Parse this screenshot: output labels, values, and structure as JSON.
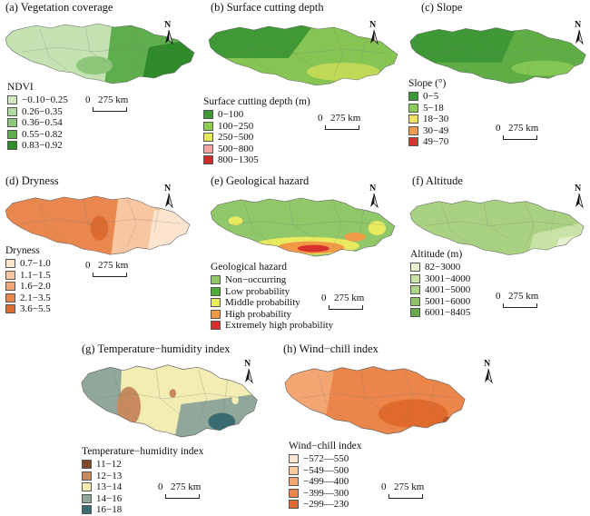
{
  "panels": [
    {
      "title": "(a) Vegetation coverage",
      "legend_title": "NDVI",
      "classes": [
        {
          "label": "−0.10−0.25",
          "color": "#cfe8c0"
        },
        {
          "label": "0.26−0.35",
          "color": "#b2d99e"
        },
        {
          "label": "0.36−0.54",
          "color": "#8cc77a"
        },
        {
          "label": "0.55−0.82",
          "color": "#5fae4e"
        },
        {
          "label": "0.83−0.92",
          "color": "#2f8a2a"
        }
      ],
      "fill": "#c4e2b2",
      "accent": "#5aac48",
      "north": "N",
      "scale_zero": "0",
      "scale_label": "275 km"
    },
    {
      "title": "(b) Surface cutting depth",
      "legend_title": "Surface cutting depth (m)",
      "classes": [
        {
          "label": "0−100",
          "color": "#3f9a35"
        },
        {
          "label": "100−250",
          "color": "#8fcf4f"
        },
        {
          "label": "250−500",
          "color": "#e6e65a"
        },
        {
          "label": "500−800",
          "color": "#f4a6a6"
        },
        {
          "label": "800−1305",
          "color": "#cc2b2b"
        }
      ],
      "fill": "#86c553",
      "accent": "#4fa338",
      "north": "N",
      "scale_zero": "0",
      "scale_label": "275 km"
    },
    {
      "title": "(c) Slope",
      "legend_title": "Slope (°)",
      "classes": [
        {
          "label": "0−5",
          "color": "#3e9836"
        },
        {
          "label": "5−18",
          "color": "#8ccc58"
        },
        {
          "label": "18−30",
          "color": "#eee060"
        },
        {
          "label": "30−49",
          "color": "#ef9a4e"
        },
        {
          "label": "49−70",
          "color": "#d8332e"
        }
      ],
      "fill": "#5fae45",
      "accent": "#3e9836",
      "north": "N",
      "scale_zero": "0",
      "scale_label": "275 km"
    },
    {
      "title": "(d) Dryness",
      "legend_title": "Dryness",
      "classes": [
        {
          "label": "0.7−1.0",
          "color": "#fde4cf"
        },
        {
          "label": "1.1−1.5",
          "color": "#f8c7a1"
        },
        {
          "label": "1.6−2.0",
          "color": "#f2a677"
        },
        {
          "label": "2.1−3.5",
          "color": "#e9874f"
        },
        {
          "label": "3.6−5.5",
          "color": "#dd6a2e"
        }
      ],
      "fill": "#e9874f",
      "accent": "#f8c7a1",
      "north": "N",
      "scale_zero": "0",
      "scale_label": "275 km"
    },
    {
      "title": "(e) Geological hazard",
      "legend_title": "Geological hazard",
      "classes": [
        {
          "label": "Non−occurring",
          "color": "#8fc769"
        },
        {
          "label": "Low probability",
          "color": "#4fa83a"
        },
        {
          "label": "Middle probability",
          "color": "#eaea5e"
        },
        {
          "label": "High probability",
          "color": "#f09a48"
        },
        {
          "label": "Extremely high probability",
          "color": "#d8302c"
        }
      ],
      "fill": "#8fc769",
      "accent": "#eaea5e",
      "north": "N",
      "scale_zero": "0",
      "scale_label": "275 km"
    },
    {
      "title": "(f) Altitude",
      "legend_title": "Altitude (m)",
      "classes": [
        {
          "label": "82−3000",
          "color": "#e5f2cf"
        },
        {
          "label": "3001−4000",
          "color": "#c9e3a6"
        },
        {
          "label": "4001−5000",
          "color": "#add487"
        },
        {
          "label": "5001−6000",
          "color": "#8fc269"
        },
        {
          "label": "6001−8405",
          "color": "#6aa948"
        }
      ],
      "fill": "#a9d182",
      "accent": "#e1efc9",
      "north": "N",
      "scale_zero": "0",
      "scale_label": "275 km"
    },
    {
      "title": "(g) Temperature−humidity index",
      "legend_title": "Temperature−humidity index",
      "classes": [
        {
          "label": "11−12",
          "color": "#7a4a2a"
        },
        {
          "label": "12−13",
          "color": "#c78a5c"
        },
        {
          "label": "13−14",
          "color": "#f3ecb3"
        },
        {
          "label": "14−16",
          "color": "#8fa89a"
        },
        {
          "label": "16−18",
          "color": "#3a6b73"
        }
      ],
      "fill": "#f3ecb3",
      "accent": "#8fa89a",
      "north": "N",
      "scale_zero": "0",
      "scale_label": "275 km"
    },
    {
      "title": "(h) Wind−chill index",
      "legend_title": "Wind−chill index",
      "classes": [
        {
          "label": "−572—550",
          "color": "#fde6cf"
        },
        {
          "label": "−549—500",
          "color": "#f9c9a0"
        },
        {
          "label": "−499—400",
          "color": "#f4a672"
        },
        {
          "label": "−399—300",
          "color": "#ec8549"
        },
        {
          "label": "−299—230",
          "color": "#e06a2b"
        }
      ],
      "fill": "#ec8549",
      "accent": "#e06a2b",
      "north": "N",
      "scale_zero": "0",
      "scale_label": "275 km"
    }
  ]
}
